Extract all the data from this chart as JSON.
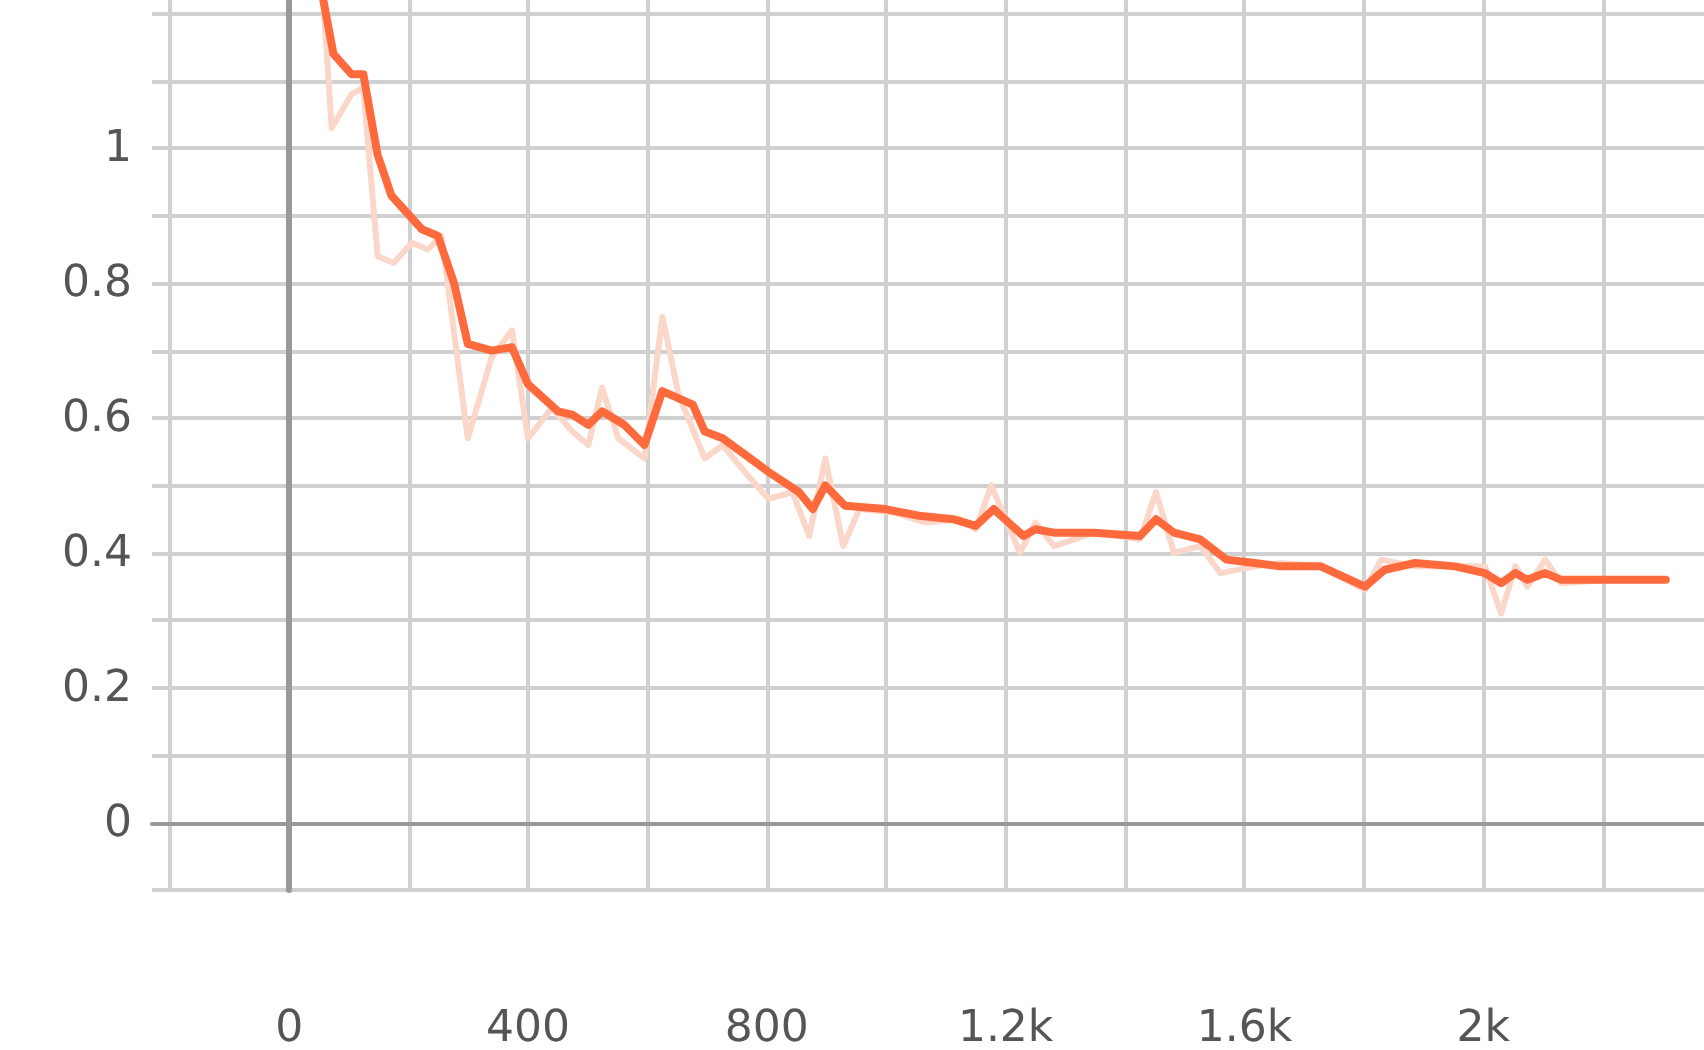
{
  "chart_data": {
    "type": "line",
    "grid": true,
    "marker": "none",
    "line_style": "solid",
    "xlim": [
      -230,
      2370
    ],
    "ylim": [
      -0.1,
      1.22
    ],
    "xticks": [
      {
        "value": -200,
        "label": null
      },
      0,
      {
        "value": 200,
        "label": null
      },
      400,
      {
        "value": 600,
        "label": null
      },
      800,
      {
        "value": 1000,
        "label": null
      },
      {
        "value": 1200,
        "label": "1.2k"
      },
      {
        "value": 1400,
        "label": null
      },
      {
        "value": 1600,
        "label": "1.6k"
      },
      {
        "value": 1800,
        "label": null
      },
      {
        "value": 2000,
        "label": "2k"
      },
      {
        "value": 2200,
        "label": null
      }
    ],
    "yticks": [
      {
        "value": -0.1,
        "label": null
      },
      0,
      {
        "value": 0.1,
        "label": null
      },
      0.2,
      {
        "value": 0.3,
        "label": null
      },
      0.4,
      {
        "value": 0.5,
        "label": null
      },
      0.6,
      {
        "value": 0.7,
        "label": null
      },
      0.8,
      {
        "value": 0.9,
        "label": null
      },
      1,
      {
        "value": 1.1,
        "label": null
      },
      {
        "value": 1.2,
        "label": null
      }
    ],
    "series": [
      {
        "color": "#fbd7ca",
        "x": [
          57,
          71,
          104,
          124,
          148,
          175,
          205,
          232,
          255,
          299,
          339,
          373,
          400,
          440,
          474,
          501,
          524,
          551,
          595,
          625,
          652,
          696,
          726,
          763,
          803,
          843,
          871,
          898,
          928,
          955,
          1012,
          1066,
          1123,
          1150,
          1176,
          1224,
          1250,
          1281,
          1348,
          1425,
          1452,
          1482,
          1526,
          1560,
          1617,
          1660,
          1728,
          1802,
          1829,
          1886,
          1953,
          2003,
          2030,
          2054,
          2074,
          2104,
          2131,
          2208,
          2306
        ],
        "values": [
          1.22,
          1.03,
          1.08,
          1.09,
          0.84,
          0.83,
          0.86,
          0.85,
          0.87,
          0.57,
          0.69,
          0.73,
          0.57,
          0.615,
          0.58,
          0.56,
          0.645,
          0.57,
          0.54,
          0.75,
          0.635,
          0.54,
          0.56,
          0.52,
          0.48,
          0.49,
          0.425,
          0.54,
          0.41,
          0.465,
          0.46,
          0.445,
          0.45,
          0.435,
          0.5,
          0.4,
          0.445,
          0.41,
          0.43,
          0.42,
          0.49,
          0.4,
          0.41,
          0.37,
          0.38,
          0.385,
          0.38,
          0.345,
          0.39,
          0.38,
          0.38,
          0.38,
          0.31,
          0.38,
          0.35,
          0.39,
          0.355,
          0.36,
          0.36
        ]
      },
      {
        "color": "#ff6a3d",
        "x": [
          57,
          74,
          104,
          124,
          148,
          171,
          222,
          249,
          276,
          299,
          339,
          373,
          400,
          450,
          474,
          501,
          524,
          561,
          595,
          625,
          676,
          696,
          726,
          803,
          854,
          877,
          898,
          931,
          998,
          1055,
          1112,
          1150,
          1180,
          1230,
          1250,
          1281,
          1348,
          1425,
          1452,
          1482,
          1526,
          1570,
          1617,
          1660,
          1728,
          1802,
          1835,
          1886,
          1953,
          2003,
          2030,
          2054,
          2074,
          2104,
          2131,
          2208,
          2265,
          2306
        ],
        "values": [
          1.22,
          1.14,
          1.11,
          1.11,
          0.99,
          0.93,
          0.88,
          0.87,
          0.8,
          0.71,
          0.7,
          0.705,
          0.65,
          0.61,
          0.605,
          0.59,
          0.61,
          0.59,
          0.56,
          0.64,
          0.62,
          0.58,
          0.57,
          0.52,
          0.49,
          0.465,
          0.5,
          0.47,
          0.465,
          0.455,
          0.45,
          0.44,
          0.465,
          0.425,
          0.435,
          0.43,
          0.43,
          0.425,
          0.45,
          0.43,
          0.42,
          0.39,
          0.385,
          0.38,
          0.38,
          0.35,
          0.375,
          0.385,
          0.38,
          0.37,
          0.355,
          0.37,
          0.36,
          0.37,
          0.36,
          0.36,
          0.36,
          0.36
        ]
      }
    ]
  }
}
